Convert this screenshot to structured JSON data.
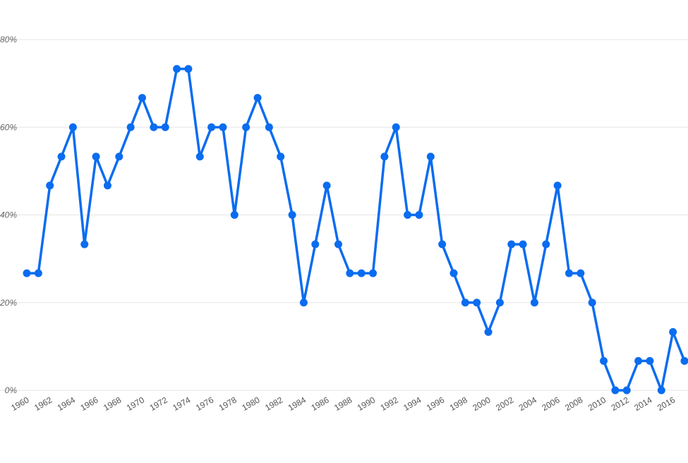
{
  "chart_data": {
    "type": "line",
    "x": [
      1960,
      1961,
      1962,
      1963,
      1964,
      1965,
      1966,
      1967,
      1968,
      1969,
      1970,
      1971,
      1972,
      1973,
      1974,
      1975,
      1976,
      1977,
      1978,
      1979,
      1980,
      1981,
      1982,
      1983,
      1984,
      1985,
      1986,
      1987,
      1988,
      1989,
      1990,
      1991,
      1992,
      1993,
      1994,
      1995,
      1996,
      1997,
      1998,
      1999,
      2000,
      2001,
      2002,
      2003,
      2004,
      2005,
      2006,
      2007,
      2008,
      2009,
      2010,
      2011,
      2012,
      2013,
      2014,
      2015,
      2016,
      2017
    ],
    "series": [
      {
        "values": [
          26.7,
          26.7,
          46.7,
          53.3,
          60,
          33.3,
          53.3,
          46.7,
          53.3,
          60,
          66.7,
          60,
          60,
          73.3,
          73.3,
          53.3,
          60,
          60,
          40,
          60,
          66.7,
          60,
          53.3,
          40,
          20,
          33.3,
          46.7,
          33.3,
          26.7,
          26.7,
          26.7,
          53.3,
          60,
          40,
          40,
          53.3,
          33.3,
          26.7,
          20,
          20,
          13.3,
          20,
          33.3,
          33.3,
          20,
          33.3,
          46.7,
          26.7,
          26.7,
          20,
          6.7,
          0,
          0,
          6.7,
          6.7,
          0,
          13.3,
          6.7
        ],
        "color": "#0a6cf0"
      }
    ],
    "x_tick_labels": [
      "1960",
      "1962",
      "1964",
      "1966",
      "1968",
      "1970",
      "1972",
      "1974",
      "1976",
      "1978",
      "1980",
      "1982",
      "1984",
      "1986",
      "1988",
      "1990",
      "1992",
      "1994",
      "1996",
      "1998",
      "2000",
      "2002",
      "2004",
      "2006",
      "2008",
      "2010",
      "2012",
      "2014",
      "2016"
    ],
    "y_tick_labels": [
      "0%",
      "20%",
      "40%",
      "60%",
      "80%"
    ],
    "y_ticks": [
      0,
      20,
      40,
      60,
      80
    ],
    "xlim": [
      1960,
      2017
    ],
    "ylim": [
      0,
      80
    ],
    "grid": true,
    "title": "",
    "xlabel": "",
    "ylabel": ""
  }
}
